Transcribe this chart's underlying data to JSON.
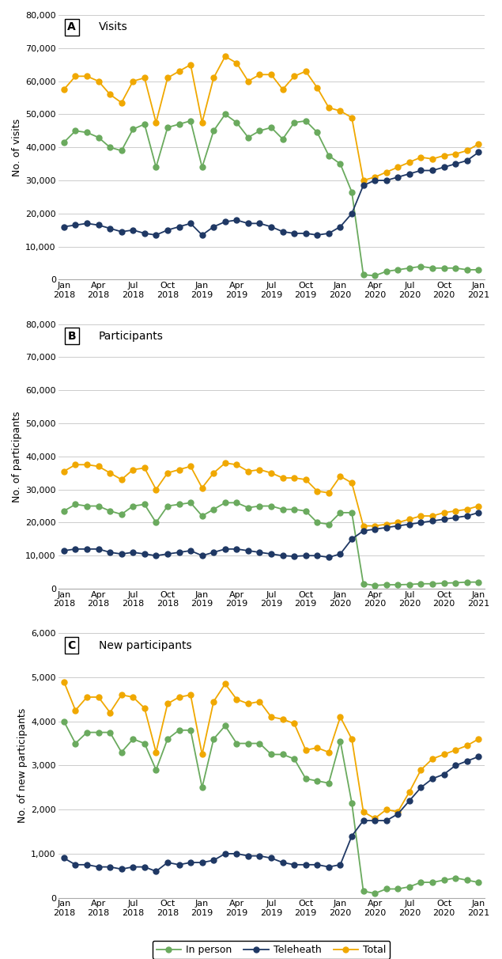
{
  "visits_inperson": [
    41500,
    45000,
    44500,
    43000,
    40000,
    39000,
    45500,
    47000,
    34000,
    46000,
    47000,
    48000,
    34000,
    45000,
    50000,
    47500,
    43000,
    45000,
    46000,
    42500,
    47500,
    48000,
    44500,
    37500,
    35000,
    26500,
    1500,
    1200,
    2500,
    3000,
    3500,
    4000,
    3500,
    3500,
    3500,
    3000,
    3000
  ],
  "visits_telehealth": [
    16000,
    16500,
    17000,
    16500,
    15500,
    14500,
    15000,
    14000,
    13500,
    15000,
    16000,
    17000,
    13500,
    16000,
    17500,
    18000,
    17000,
    17000,
    16000,
    14500,
    14000,
    14000,
    13500,
    14000,
    16000,
    20000,
    28500,
    30000,
    30000,
    31000,
    32000,
    33000,
    33000,
    34000,
    35000,
    36000,
    38500
  ],
  "visits_total": [
    57500,
    61500,
    61500,
    60000,
    56000,
    53500,
    60000,
    61000,
    47500,
    61000,
    63000,
    65000,
    47500,
    61000,
    67500,
    65500,
    60000,
    62000,
    62000,
    57500,
    61500,
    63000,
    58000,
    52000,
    51000,
    49000,
    30000,
    31000,
    32500,
    34000,
    35500,
    37000,
    36500,
    37500,
    38000,
    39000,
    41000
  ],
  "participants_inperson": [
    23500,
    25500,
    25000,
    25000,
    23500,
    22500,
    25000,
    25500,
    20000,
    25000,
    25500,
    26000,
    22000,
    24000,
    26000,
    26000,
    24500,
    25000,
    25000,
    24000,
    24000,
    23500,
    20000,
    19500,
    23000,
    23000,
    1500,
    1000,
    1200,
    1200,
    1300,
    1500,
    1500,
    1700,
    1800,
    2000,
    2000
  ],
  "participants_telehealth": [
    11500,
    12000,
    12000,
    12000,
    11000,
    10500,
    11000,
    10500,
    10000,
    10500,
    11000,
    11500,
    10000,
    11000,
    12000,
    12000,
    11500,
    11000,
    10500,
    10000,
    9800,
    10000,
    10000,
    9500,
    10500,
    15000,
    17500,
    18000,
    18500,
    19000,
    19500,
    20000,
    20500,
    21000,
    21500,
    22000,
    23000
  ],
  "participants_total": [
    35500,
    37500,
    37500,
    37000,
    35000,
    33000,
    36000,
    36500,
    30000,
    35000,
    36000,
    37000,
    30500,
    35000,
    38000,
    37500,
    35500,
    36000,
    35000,
    33500,
    33500,
    33000,
    29500,
    29000,
    34000,
    32000,
    19000,
    19000,
    19500,
    20000,
    21000,
    22000,
    22000,
    23000,
    23500,
    24000,
    25000
  ],
  "newpart_inperson": [
    4000,
    3500,
    3750,
    3750,
    3750,
    3300,
    3600,
    3500,
    2900,
    3600,
    3800,
    3800,
    2500,
    3600,
    3900,
    3500,
    3500,
    3500,
    3250,
    3250,
    3150,
    2700,
    2650,
    2600,
    3550,
    2150,
    150,
    100,
    200,
    200,
    250,
    350,
    350,
    400,
    450,
    400,
    350
  ],
  "newpart_telehealth": [
    900,
    750,
    750,
    700,
    700,
    650,
    700,
    700,
    600,
    800,
    750,
    800,
    800,
    850,
    1000,
    1000,
    950,
    950,
    900,
    800,
    750,
    750,
    750,
    700,
    750,
    1400,
    1750,
    1750,
    1750,
    1900,
    2200,
    2500,
    2700,
    2800,
    3000,
    3100,
    3200
  ],
  "newpart_total": [
    4900,
    4250,
    4550,
    4550,
    4200,
    4600,
    4550,
    4300,
    3300,
    4400,
    4550,
    4600,
    3250,
    4450,
    4850,
    4500,
    4400,
    4450,
    4100,
    4050,
    3950,
    3350,
    3400,
    3300,
    4100,
    3600,
    1950,
    1800,
    2000,
    1950,
    2400,
    2900,
    3150,
    3250,
    3350,
    3450,
    3600
  ],
  "color_inperson": "#6aaa5e",
  "color_telehealth": "#1f3864",
  "color_total": "#f0a800",
  "background_color": "#ffffff",
  "grid_color": "#cccccc",
  "tick_labels": [
    "Jan\n2018",
    "Apr\n2018",
    "Jul\n2018",
    "Oct\n2018",
    "Jan\n2019",
    "Apr\n2019",
    "Jul\n2019",
    "Oct\n2019",
    "Jan\n2020",
    "Apr\n2020",
    "Jul\n2020",
    "Oct\n2020",
    "Jan\n2021"
  ],
  "tick_pos": [
    0,
    3,
    6,
    9,
    12,
    15,
    18,
    21,
    24,
    27,
    30,
    33,
    36
  ],
  "panels": [
    {
      "label": "A",
      "title": "Visits",
      "ylabel": "No. of visits",
      "ylim": [
        0,
        80000
      ],
      "yticks": [
        0,
        10000,
        20000,
        30000,
        40000,
        50000,
        60000,
        70000,
        80000
      ],
      "ytick_labels": [
        "0",
        "10,000",
        "20,000",
        "30,000",
        "40,000",
        "50,000",
        "60,000",
        "70,000",
        "80,000"
      ]
    },
    {
      "label": "B",
      "title": "Participants",
      "ylabel": "No. of participants",
      "ylim": [
        0,
        80000
      ],
      "yticks": [
        0,
        10000,
        20000,
        30000,
        40000,
        50000,
        60000,
        70000,
        80000
      ],
      "ytick_labels": [
        "0",
        "10,000",
        "20,000",
        "30,000",
        "40,000",
        "50,000",
        "60,000",
        "70,000",
        "80,000"
      ]
    },
    {
      "label": "C",
      "title": "New participants",
      "ylabel": "No. of new participants",
      "ylim": [
        0,
        6000
      ],
      "yticks": [
        0,
        1000,
        2000,
        3000,
        4000,
        5000,
        6000
      ],
      "ytick_labels": [
        "0",
        "1,000",
        "2,000",
        "3,000",
        "4,000",
        "5,000",
        "6,000"
      ]
    }
  ]
}
